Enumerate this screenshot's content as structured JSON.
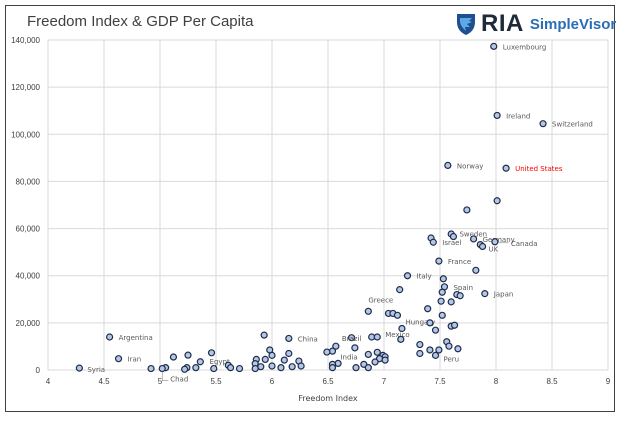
{
  "title": "Freedom Index & GDP Per Capita",
  "logo": {
    "mark": "RIA",
    "name": "SimpleVisor",
    "icon": "eagle-shield-icon",
    "brand_color": "#2a6db5"
  },
  "chart_data": {
    "type": "scatter",
    "title": "Freedom Index & GDP Per Capita",
    "xlabel": "Freedom Index",
    "ylabel": "",
    "xlim": [
      4,
      9
    ],
    "ylim": [
      0,
      140000
    ],
    "x_ticks": [
      4,
      4.5,
      5,
      5.5,
      6,
      6.5,
      7,
      7.5,
      8,
      8.5,
      9
    ],
    "x_tick_labels": [
      "4",
      "4.5",
      "5",
      "5.5",
      "6",
      "6.5",
      "7",
      "7.5",
      "8",
      "8.5",
      "9"
    ],
    "y_ticks": [
      0,
      20000,
      40000,
      60000,
      80000,
      100000,
      120000,
      140000
    ],
    "y_tick_labels": [
      "0",
      "20,000",
      "40,000",
      "60,000",
      "80,000",
      "100,000",
      "120,000",
      "140,000"
    ],
    "grid": true,
    "marker_fill": "#b4c7e7",
    "marker_stroke": "#1f2d4a",
    "highlight_color": "#ff0000",
    "highlight": "United States",
    "points": [
      {
        "x": 7.98,
        "y": 137300,
        "label": "Luxembourg"
      },
      {
        "x": 8.01,
        "y": 108000,
        "label": "Ireland"
      },
      {
        "x": 8.42,
        "y": 104500,
        "label": "Switzerland"
      },
      {
        "x": 7.57,
        "y": 86800,
        "label": "Norway"
      },
      {
        "x": 8.09,
        "y": 85600,
        "label": "United States"
      },
      {
        "x": 8.01,
        "y": 71800
      },
      {
        "x": 7.74,
        "y": 67900
      },
      {
        "x": 7.6,
        "y": 57700
      },
      {
        "x": 7.62,
        "y": 56600,
        "label": "Sweden"
      },
      {
        "x": 7.8,
        "y": 55600,
        "label": "Germany"
      },
      {
        "x": 7.42,
        "y": 56000
      },
      {
        "x": 7.44,
        "y": 54200,
        "label": "Israel"
      },
      {
        "x": 7.86,
        "y": 53200
      },
      {
        "x": 7.88,
        "y": 52400,
        "label": "UK"
      },
      {
        "x": 7.99,
        "y": 54400,
        "label": "Canada"
      },
      {
        "x": 7.49,
        "y": 46200,
        "label": "France"
      },
      {
        "x": 7.82,
        "y": 42300
      },
      {
        "x": 7.21,
        "y": 40000,
        "label": "Italy"
      },
      {
        "x": 7.53,
        "y": 38700
      },
      {
        "x": 7.54,
        "y": 35300,
        "label": "Spain"
      },
      {
        "x": 7.14,
        "y": 34100
      },
      {
        "x": 7.52,
        "y": 33000
      },
      {
        "x": 7.9,
        "y": 32400,
        "label": "Japan"
      },
      {
        "x": 7.65,
        "y": 32000
      },
      {
        "x": 7.68,
        "y": 31500
      },
      {
        "x": 7.51,
        "y": 29200
      },
      {
        "x": 7.6,
        "y": 28900
      },
      {
        "x": 7.39,
        "y": 26000
      },
      {
        "x": 6.86,
        "y": 24900,
        "label": "Greece"
      },
      {
        "x": 7.04,
        "y": 24000
      },
      {
        "x": 7.08,
        "y": 24000
      },
      {
        "x": 7.12,
        "y": 23200,
        "label": "Hungary"
      },
      {
        "x": 7.52,
        "y": 23200
      },
      {
        "x": 7.41,
        "y": 20000
      },
      {
        "x": 7.6,
        "y": 18600
      },
      {
        "x": 7.63,
        "y": 19000
      },
      {
        "x": 7.16,
        "y": 17600
      },
      {
        "x": 7.46,
        "y": 16900
      },
      {
        "x": 5.93,
        "y": 14800
      },
      {
        "x": 4.55,
        "y": 14000,
        "label": "Argentina"
      },
      {
        "x": 6.89,
        "y": 14000
      },
      {
        "x": 6.94,
        "y": 14000,
        "label": "Mexico"
      },
      {
        "x": 6.71,
        "y": 13700
      },
      {
        "x": 6.15,
        "y": 13400,
        "label": "China"
      },
      {
        "x": 7.15,
        "y": 13000
      },
      {
        "x": 7.56,
        "y": 12000
      },
      {
        "x": 7.32,
        "y": 10800
      },
      {
        "x": 6.57,
        "y": 10100,
        "label": "Brazil"
      },
      {
        "x": 7.58,
        "y": 10100
      },
      {
        "x": 6.74,
        "y": 9400
      },
      {
        "x": 7.66,
        "y": 9000
      },
      {
        "x": 5.98,
        "y": 8500
      },
      {
        "x": 7.41,
        "y": 8500
      },
      {
        "x": 7.49,
        "y": 8500
      },
      {
        "x": 6.54,
        "y": 8000
      },
      {
        "x": 6.49,
        "y": 7600
      },
      {
        "x": 6.94,
        "y": 7500
      },
      {
        "x": 5.46,
        "y": 7300,
        "label": "Egypt"
      },
      {
        "x": 6.15,
        "y": 7000
      },
      {
        "x": 7.32,
        "y": 7000
      },
      {
        "x": 6.86,
        "y": 6600
      },
      {
        "x": 5.25,
        "y": 6300
      },
      {
        "x": 6.0,
        "y": 6200
      },
      {
        "x": 6.99,
        "y": 6200
      },
      {
        "x": 7.46,
        "y": 6200,
        "label": "Peru"
      },
      {
        "x": 7.01,
        "y": 5600
      },
      {
        "x": 5.12,
        "y": 5500
      },
      {
        "x": 4.63,
        "y": 4800,
        "label": "Iran"
      },
      {
        "x": 6.96,
        "y": 4800
      },
      {
        "x": 5.86,
        "y": 4500
      },
      {
        "x": 5.94,
        "y": 4500
      },
      {
        "x": 6.11,
        "y": 4200
      },
      {
        "x": 7.01,
        "y": 4200
      },
      {
        "x": 6.24,
        "y": 3800
      },
      {
        "x": 5.36,
        "y": 3500
      },
      {
        "x": 6.92,
        "y": 3400
      },
      {
        "x": 6.59,
        "y": 2800
      },
      {
        "x": 5.85,
        "y": 2700
      },
      {
        "x": 6.54,
        "y": 2400,
        "label": "India"
      },
      {
        "x": 6.82,
        "y": 2400
      },
      {
        "x": 5.61,
        "y": 2000
      },
      {
        "x": 6.0,
        "y": 1700
      },
      {
        "x": 6.26,
        "y": 1700
      },
      {
        "x": 5.9,
        "y": 1400
      },
      {
        "x": 6.18,
        "y": 1400
      },
      {
        "x": 5.05,
        "y": 1000
      },
      {
        "x": 5.24,
        "y": 1000
      },
      {
        "x": 5.32,
        "y": 1000
      },
      {
        "x": 5.63,
        "y": 1000
      },
      {
        "x": 6.08,
        "y": 1000
      },
      {
        "x": 6.54,
        "y": 1000
      },
      {
        "x": 6.75,
        "y": 1000
      },
      {
        "x": 6.86,
        "y": 1000
      },
      {
        "x": 4.28,
        "y": 800,
        "label": "Syria"
      },
      {
        "x": 4.92,
        "y": 600
      },
      {
        "x": 5.02,
        "y": 600,
        "label": "Chad"
      },
      {
        "x": 5.48,
        "y": 600
      },
      {
        "x": 5.71,
        "y": 600
      },
      {
        "x": 5.85,
        "y": 600
      },
      {
        "x": 5.22,
        "y": 300
      }
    ]
  }
}
